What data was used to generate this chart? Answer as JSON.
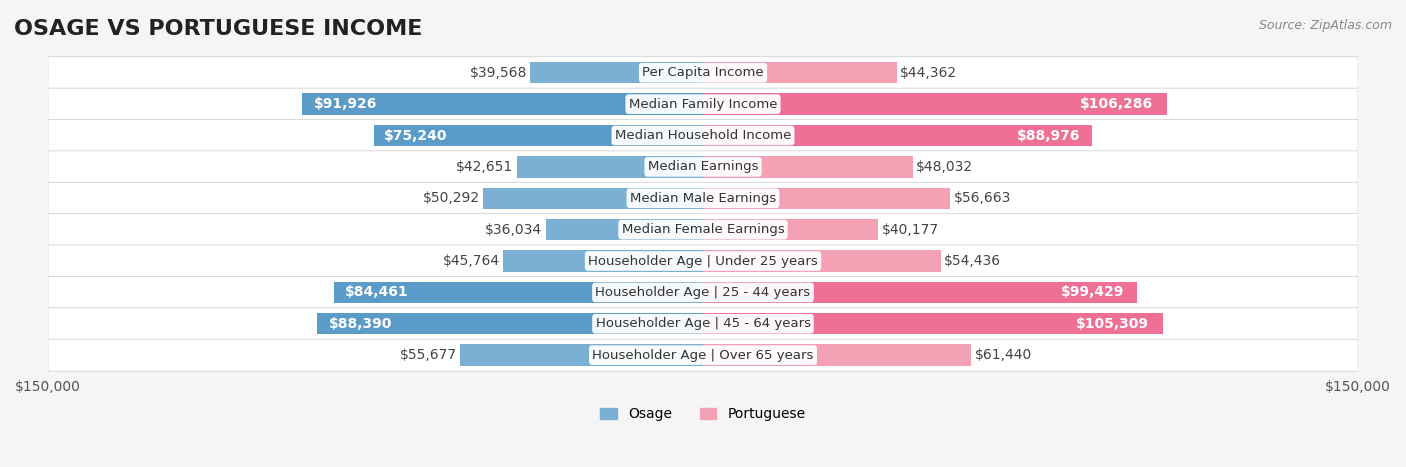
{
  "title": "OSAGE VS PORTUGUESE INCOME",
  "source": "Source: ZipAtlas.com",
  "categories": [
    "Per Capita Income",
    "Median Family Income",
    "Median Household Income",
    "Median Earnings",
    "Median Male Earnings",
    "Median Female Earnings",
    "Householder Age | Under 25 years",
    "Householder Age | 25 - 44 years",
    "Householder Age | 45 - 64 years",
    "Householder Age | Over 65 years"
  ],
  "osage_values": [
    39568,
    91926,
    75240,
    42651,
    50292,
    36034,
    45764,
    84461,
    88390,
    55677
  ],
  "portuguese_values": [
    44362,
    106286,
    88976,
    48032,
    56663,
    40177,
    54436,
    99429,
    105309,
    61440
  ],
  "osage_color": "#7bafd4",
  "osage_color_dark": "#5b9bc8",
  "portuguese_color": "#f4a0b5",
  "portuguese_color_dark": "#ee7096",
  "osage_label": "Osage",
  "portuguese_label": "Portuguese",
  "max_value": 150000,
  "background_color": "#f5f5f5",
  "row_bg_color": "#ffffff",
  "label_bg_color": "#ffffff",
  "title_fontsize": 16,
  "value_fontsize": 10,
  "category_fontsize": 9.5,
  "axis_fontsize": 10
}
